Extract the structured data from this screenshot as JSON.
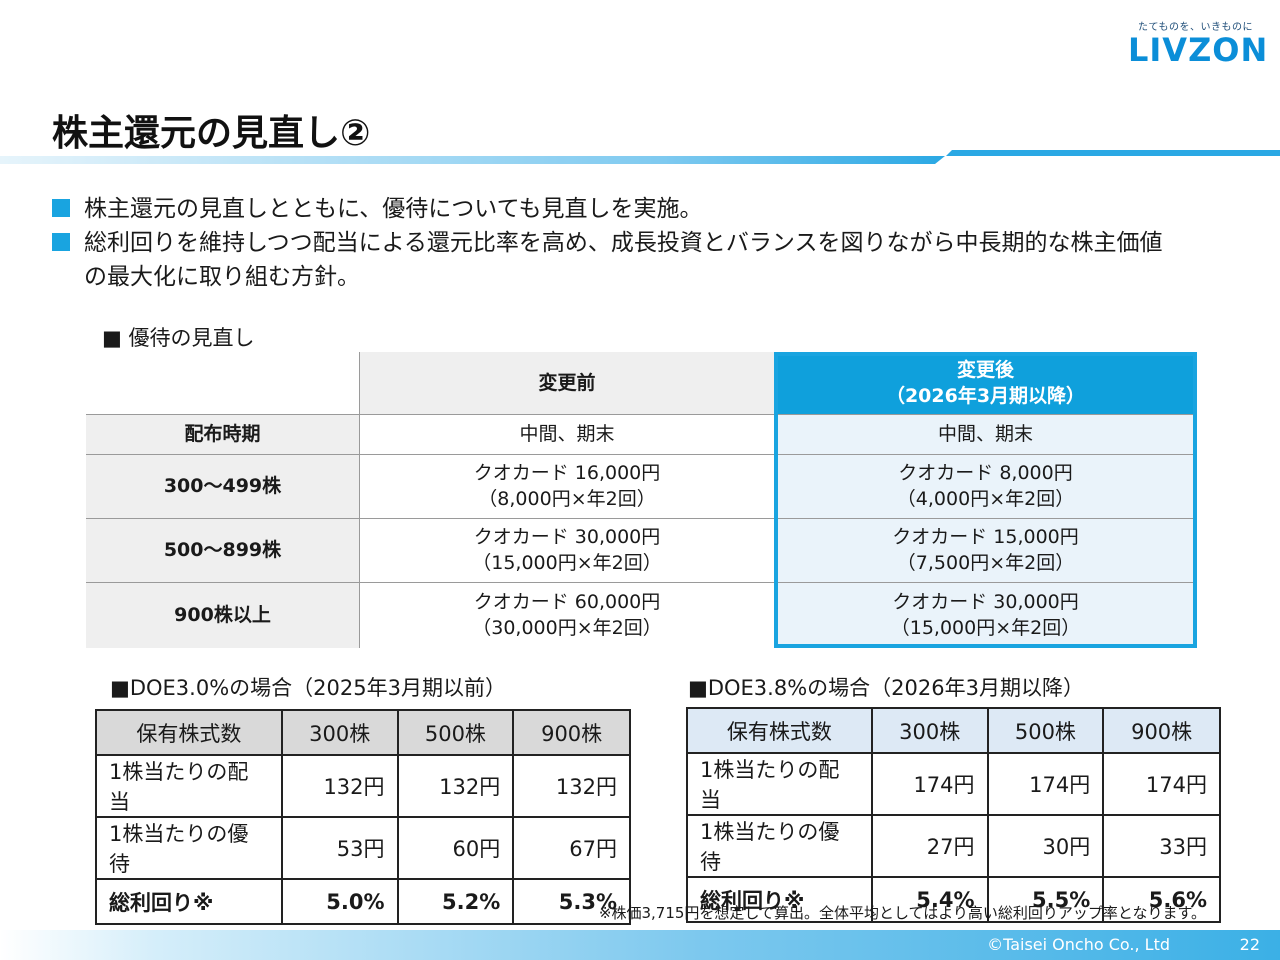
{
  "header": {
    "tagline": "たてものを、いきものに",
    "logo_text": "LIVZON",
    "title": "株主還元の見直し②"
  },
  "bullets": [
    "株主還元の見直しとともに、優待についても見直しを実施。",
    "総利回りを維持しつつ配当による還元比率を高め、成長投資とバランスを図りながら中長期的な株主価値の最大化に取り組む方針。"
  ],
  "benefit_section": {
    "label": "■ 優待の見直し",
    "col_before": "変更前",
    "col_after_line1": "変更後",
    "col_after_line2": "（2026年3月期以降）",
    "rows": [
      {
        "label": "配布時期",
        "before": [
          "中間、期末"
        ],
        "after": [
          "中間、期末"
        ]
      },
      {
        "label": "300～499株",
        "before": [
          "クオカード 16,000円",
          "（8,000円×年2回）"
        ],
        "after": [
          "クオカード 8,000円",
          "（4,000円×年2回）"
        ]
      },
      {
        "label": "500～899株",
        "before": [
          "クオカード 30,000円",
          "（15,000円×年2回）"
        ],
        "after": [
          "クオカード 15,000円",
          "（7,500円×年2回）"
        ]
      },
      {
        "label": "900株以上",
        "before": [
          "クオカード 60,000円",
          "（30,000円×年2回）"
        ],
        "after": [
          "クオカード 30,000円",
          "（15,000円×年2回）"
        ]
      }
    ]
  },
  "doe_left": {
    "label": "■DOE3.0%の場合（2025年3月期以前）",
    "header": [
      "保有株式数",
      "300株",
      "500株",
      "900株"
    ],
    "rows": [
      [
        "1株当たりの配当",
        "132円",
        "132円",
        "132円"
      ],
      [
        "1株当たりの優待",
        "53円",
        "60円",
        "67円"
      ],
      [
        "総利回り※",
        "5.0%",
        "5.2%",
        "5.3%"
      ]
    ]
  },
  "doe_right": {
    "label": "■DOE3.8%の場合（2026年3月期以降）",
    "header": [
      "保有株式数",
      "300株",
      "500株",
      "900株"
    ],
    "rows": [
      [
        "1株当たりの配当",
        "174円",
        "174円",
        "174円"
      ],
      [
        "1株当たりの優待",
        "27円",
        "30円",
        "33円"
      ],
      [
        "総利回り※",
        "5.4%",
        "5.5%",
        "5.6%"
      ]
    ]
  },
  "footnote": "※株価3,715円を想定して算出。全体平均としてはより高い総利回りアップ率となります。",
  "footer": {
    "copyright": "©Taisei Oncho Co., Ltd",
    "page_number": "22"
  },
  "colors": {
    "accent": "#19a4e0",
    "after_header": "#0fa0dc",
    "logo": "#0b8ed8"
  }
}
